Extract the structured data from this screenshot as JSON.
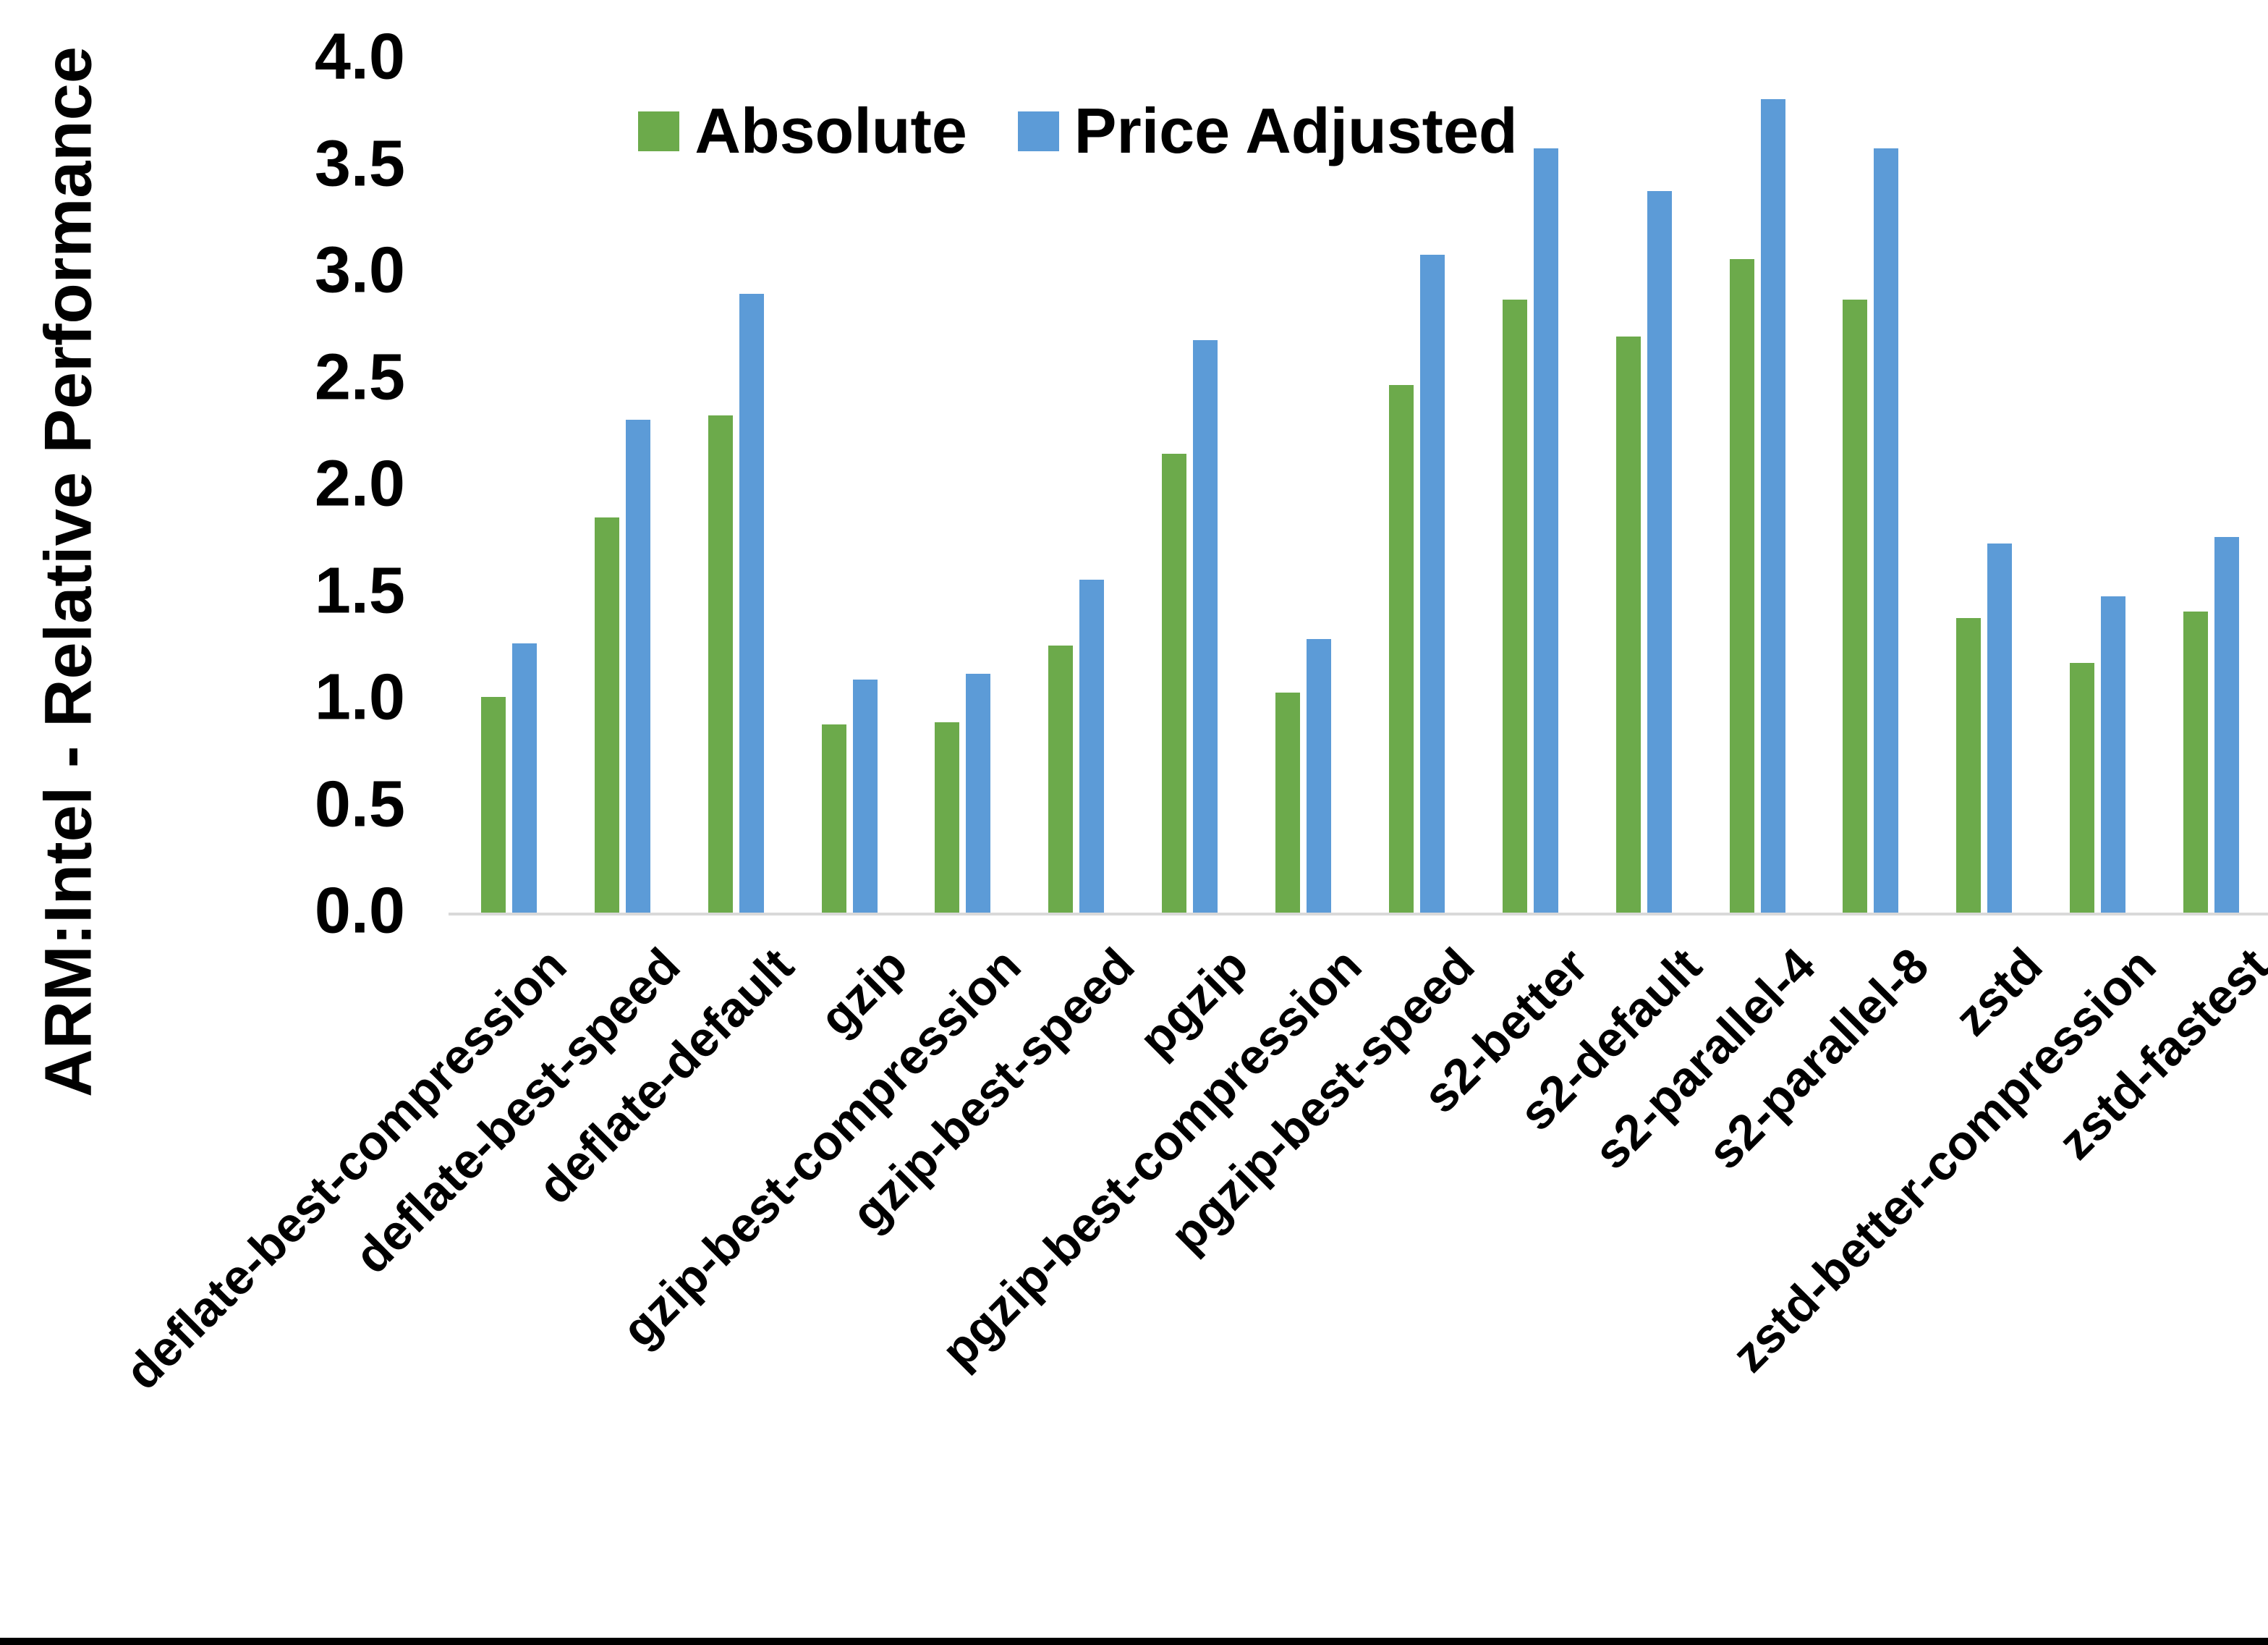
{
  "chart_data": {
    "type": "bar",
    "title": "",
    "xlabel": "",
    "ylabel": "ARM:Intel - Relative Performance",
    "ylim": [
      0.0,
      4.0
    ],
    "ytick_step": 0.5,
    "yticks": [
      "0.0",
      "0.5",
      "1.0",
      "1.5",
      "2.0",
      "2.5",
      "3.0",
      "3.5",
      "4.0"
    ],
    "grid": false,
    "legend_position": "top-center",
    "categories": [
      "deflate-best-compression",
      "deflate-best-speed",
      "deflate-default",
      "gzip",
      "gzip-best-compression",
      "gzip-best-speed",
      "pgzip",
      "pgzip-best-compression",
      "pgzip-best-speed",
      "s2-better",
      "s2-default",
      "s2-parallel-4",
      "s2-parallel-8",
      "zstd",
      "zstd-better-compression",
      "zstd-fastest"
    ],
    "series": [
      {
        "name": "Absolute",
        "color": "#6caa4b",
        "values": [
          1.01,
          1.85,
          2.33,
          0.88,
          0.89,
          1.25,
          2.15,
          1.03,
          2.47,
          2.87,
          2.7,
          3.06,
          2.87,
          1.38,
          1.17,
          1.41
        ]
      },
      {
        "name": "Price Adjusted",
        "color": "#5c9bd7",
        "values": [
          1.26,
          2.31,
          2.9,
          1.09,
          1.12,
          1.56,
          2.68,
          1.28,
          3.08,
          3.58,
          3.38,
          3.81,
          3.58,
          1.73,
          1.48,
          1.76
        ]
      }
    ]
  },
  "colors": {
    "axis_line": "#d9d9d9",
    "text": "#000000",
    "background": "#ffffff",
    "bottom_border": "#000000"
  }
}
